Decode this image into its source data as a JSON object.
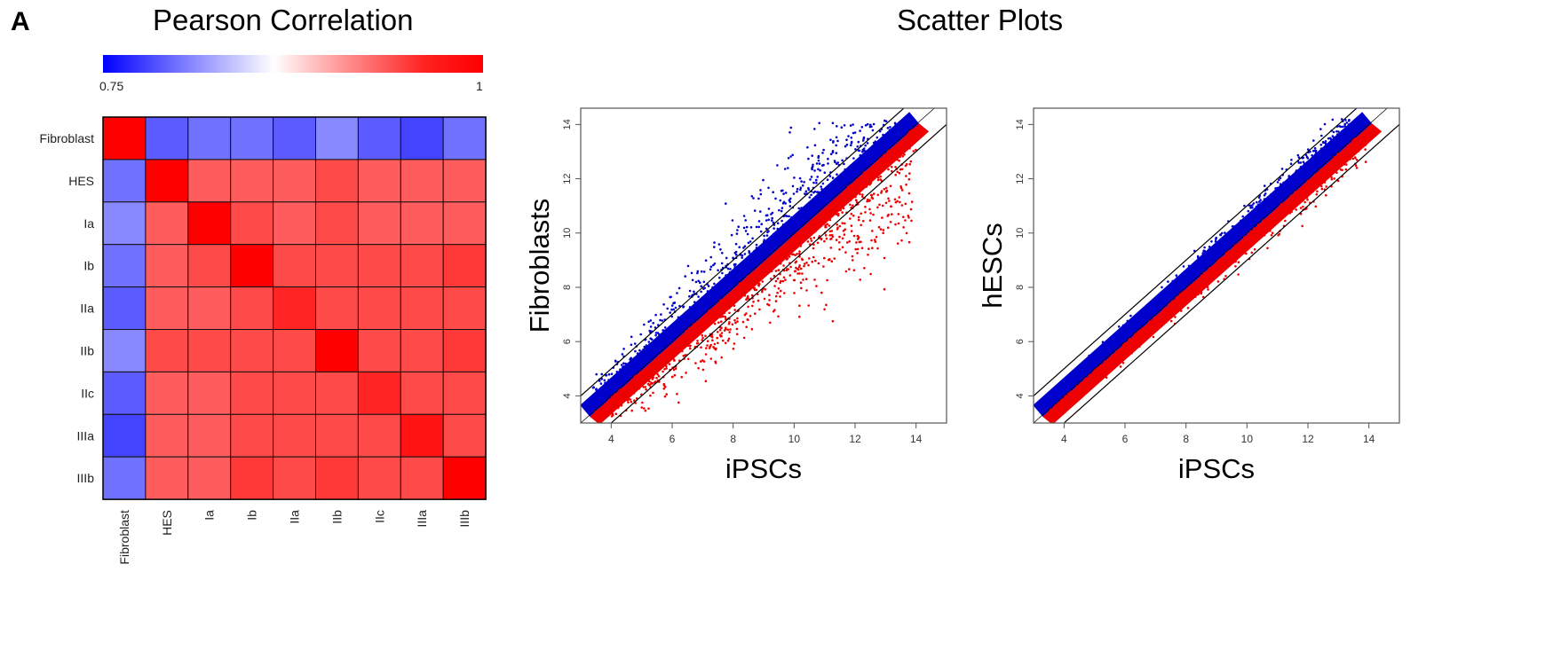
{
  "panel_label": "A",
  "heatmap": {
    "title": "Pearson Correlation",
    "colorbar_min": "0.75",
    "colorbar_max": "1",
    "colors": {
      "low": "#0000ff",
      "mid": "#ffffff",
      "high": "#ff0000"
    }
  },
  "scatter": {
    "title": "Scatter Plots",
    "colors": {
      "above": "#0000cc",
      "below": "#ee0000"
    }
  },
  "chart_data": [
    {
      "type": "heatmap",
      "title": "Pearson Correlation",
      "rows": [
        "Fibroblast",
        "HES",
        "Ia",
        "Ib",
        "IIa",
        "IIb",
        "IIc",
        "IIIa",
        "IIIb"
      ],
      "cols": [
        "Fibroblast",
        "HES",
        "Ia",
        "Ib",
        "IIa",
        "IIb",
        "IIc",
        "IIIa",
        "IIIb"
      ],
      "range": [
        0.75,
        1
      ],
      "values": [
        [
          1.0,
          0.79,
          0.8,
          0.8,
          0.79,
          0.81,
          0.79,
          0.78,
          0.8
        ],
        [
          0.8,
          1.0,
          0.95,
          0.95,
          0.95,
          0.96,
          0.95,
          0.95,
          0.95
        ],
        [
          0.81,
          0.95,
          1.0,
          0.96,
          0.95,
          0.96,
          0.95,
          0.95,
          0.95
        ],
        [
          0.8,
          0.95,
          0.96,
          1.0,
          0.96,
          0.96,
          0.96,
          0.96,
          0.97
        ],
        [
          0.79,
          0.95,
          0.95,
          0.96,
          0.98,
          0.96,
          0.96,
          0.96,
          0.96
        ],
        [
          0.81,
          0.96,
          0.96,
          0.96,
          0.96,
          1.0,
          0.96,
          0.96,
          0.97
        ],
        [
          0.79,
          0.95,
          0.95,
          0.96,
          0.96,
          0.96,
          0.98,
          0.96,
          0.96
        ],
        [
          0.78,
          0.95,
          0.95,
          0.96,
          0.96,
          0.96,
          0.96,
          0.99,
          0.96
        ],
        [
          0.8,
          0.95,
          0.95,
          0.97,
          0.96,
          0.97,
          0.96,
          0.96,
          1.0
        ]
      ]
    },
    {
      "type": "scatter",
      "xlabel": "iPSCs",
      "ylabel": "Fibroblasts",
      "xlim": [
        3,
        15
      ],
      "ylim": [
        3,
        14.6
      ],
      "xticks": [
        "4",
        "6",
        "8",
        "10",
        "12",
        "14"
      ],
      "yticks": [
        "4",
        "6",
        "8",
        "10",
        "12",
        "14"
      ],
      "fold_lines": [
        "y = x + 1",
        "y = x - 1"
      ],
      "spread": 1.6
    },
    {
      "type": "scatter",
      "xlabel": "iPSCs",
      "ylabel": "hESCs",
      "xlim": [
        3,
        15
      ],
      "ylim": [
        3,
        14.6
      ],
      "xticks": [
        "4",
        "6",
        "8",
        "10",
        "12",
        "14"
      ],
      "yticks": [
        "4",
        "6",
        "8",
        "10",
        "12",
        "14"
      ],
      "fold_lines": [
        "y = x + 1",
        "y = x - 1"
      ],
      "spread": 0.55
    }
  ]
}
